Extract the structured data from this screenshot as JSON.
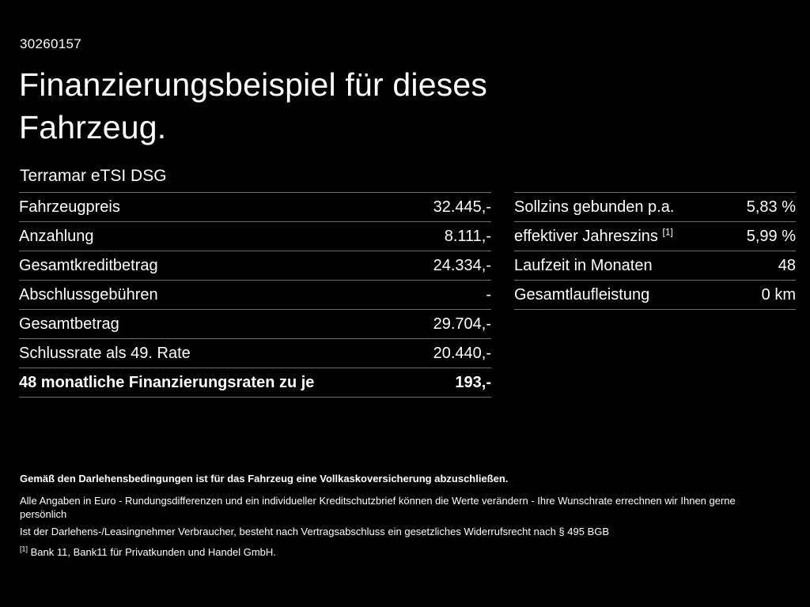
{
  "page": {
    "reference_number": "30260157",
    "title": "Finanzierungsbeispiel für dieses Fahrzeug.",
    "vehicle_model": "Terramar eTSI DSG"
  },
  "left_table": {
    "rows": [
      {
        "label": "Fahrzeugpreis",
        "value": "32.445,-"
      },
      {
        "label": "Anzahlung",
        "value": "8.111,-"
      },
      {
        "label": "Gesamtkreditbetrag",
        "value": "24.334,-"
      },
      {
        "label": "Abschlussgebühren",
        "value": "-"
      },
      {
        "label": "Gesamtbetrag",
        "value": "29.704,-"
      },
      {
        "label": "Schlussrate als 49. Rate",
        "value": "20.440,-"
      },
      {
        "label": "48 monatliche Finanzierungsraten zu je",
        "value": "193,-"
      }
    ]
  },
  "right_table": {
    "rows": [
      {
        "label": "Sollzins gebunden p.a.",
        "sup": "",
        "value": "5,83 %"
      },
      {
        "label": "effektiver Jahreszins",
        "sup": "[1]",
        "value": "5,99 %"
      },
      {
        "label": "Laufzeit in Monaten",
        "sup": "",
        "value": "48"
      },
      {
        "label": "Gesamtlaufleistung",
        "sup": "",
        "value": "0 km"
      }
    ]
  },
  "footer": {
    "line1": "Gemäß den Darlehensbedingungen ist für das Fahrzeug eine Vollkaskoversicherung abzuschließen.",
    "line2": "Alle Angaben in Euro - Rundungsdifferenzen und ein individueller Kreditschutzbrief können die Werte verändern - Ihre Wunschrate errechnen wir Ihnen gerne persönlich",
    "line3": "Ist der Darlehens-/Leasingnehmer Verbraucher, besteht nach Vertragsabschluss ein gesetzliches Widerrufsrecht nach § 495 BGB",
    "footnote_marker": "[1]",
    "footnote_text": "Bank 11, Bank11 für Privatkunden und Handel GmbH."
  },
  "colors": {
    "background": "#000000",
    "text": "#ffffff",
    "divider": "#6e6e6e"
  }
}
